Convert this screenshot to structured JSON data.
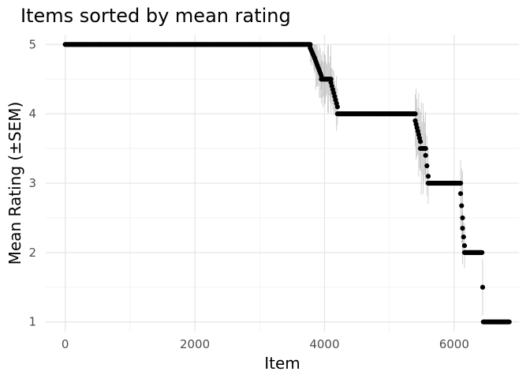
{
  "chart_data": {
    "type": "scatter",
    "title": "Items sorted by mean rating",
    "xlabel": "Item",
    "ylabel": "Mean Rating (±SEM)",
    "xlim": [
      -300,
      7000
    ],
    "ylim": [
      0.86,
      5.14
    ],
    "x_ticks": [
      0,
      2000,
      4000,
      6000
    ],
    "x_minor_ticks": [
      1000,
      3000,
      5000
    ],
    "y_ticks": [
      1,
      2,
      3,
      4,
      5
    ],
    "y_minor_ticks": [
      1.5,
      2.5,
      3.5,
      4.5
    ],
    "grid": true,
    "legend": "none",
    "point_color": "#000000",
    "error_bar_color": "#808080",
    "segments": [
      {
        "x_start": 0,
        "x_end": 3780,
        "y_start": 5.0,
        "y_end": 5.0,
        "sem": 0
      },
      {
        "x_start": 3780,
        "x_end": 3850,
        "y_start": 4.95,
        "y_end": 4.8,
        "sem": 0.3
      },
      {
        "x_start": 3850,
        "x_end": 3950,
        "y_start": 4.8,
        "y_end": 4.55,
        "sem": 0.45
      },
      {
        "x_start": 3950,
        "x_end": 4100,
        "y_start": 4.5,
        "y_end": 4.5,
        "sem": 0.5
      },
      {
        "x_start": 4100,
        "x_end": 4200,
        "y_start": 4.45,
        "y_end": 4.1,
        "sem": 0.4
      },
      {
        "x_start": 4200,
        "x_end": 5400,
        "y_start": 4.0,
        "y_end": 4.0,
        "sem": 0
      },
      {
        "x_start": 5400,
        "x_end": 5480,
        "y_start": 3.9,
        "y_end": 3.6,
        "sem": 0.7
      },
      {
        "x_start": 5480,
        "x_end": 5560,
        "y_start": 3.5,
        "y_end": 3.5,
        "sem": 0.7
      },
      {
        "x_start": 5560,
        "x_end": 5600,
        "y_start": 3.4,
        "y_end": 3.1,
        "sem": 0.5
      },
      {
        "x_start": 5600,
        "x_end": 6100,
        "y_start": 3.0,
        "y_end": 3.0,
        "sem": 0
      },
      {
        "x_start": 6100,
        "x_end": 6130,
        "y_start": 2.85,
        "y_end": 2.5,
        "sem": 1.0
      },
      {
        "x_start": 6130,
        "x_end": 6160,
        "y_start": 2.35,
        "y_end": 2.1,
        "sem": 0.5
      },
      {
        "x_start": 6160,
        "x_end": 6430,
        "y_start": 2.0,
        "y_end": 2.0,
        "sem": 0
      },
      {
        "x_start": 6440,
        "x_end": 6440,
        "y_start": 1.5,
        "y_end": 1.5,
        "sem": 0.5
      },
      {
        "x_start": 6450,
        "x_end": 6850,
        "y_start": 1.0,
        "y_end": 1.0,
        "sem": 0
      }
    ]
  }
}
